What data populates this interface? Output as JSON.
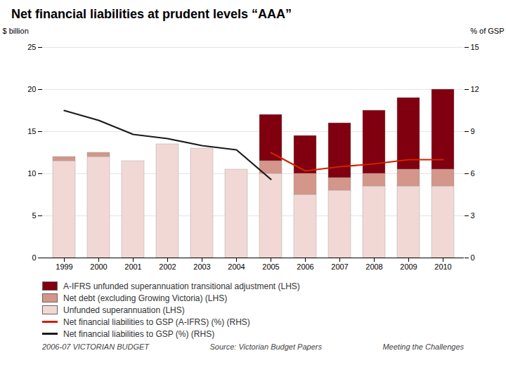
{
  "chart_data": {
    "type": "bar",
    "title": "Net financial liabilities at prudent levels “AAA”",
    "categories": [
      "1999",
      "2000",
      "2001",
      "2002",
      "2003",
      "2004",
      "2005",
      "2006",
      "2007",
      "2008",
      "2009",
      "2010"
    ],
    "stacked": true,
    "grid": true,
    "ylabel": "$ billion",
    "y2label": "% of GSP",
    "ylim": [
      0,
      25
    ],
    "yticks": [
      0,
      5,
      10,
      15,
      20,
      25
    ],
    "y2lim": [
      0,
      15
    ],
    "y2ticks": [
      0,
      3,
      6,
      9,
      12,
      15
    ],
    "series": [
      {
        "name": "Unfunded superannuation (LHS)",
        "type": "bar",
        "color": "#f2d8d4",
        "values": [
          11.5,
          12.0,
          11.5,
          13.5,
          13.0,
          10.5,
          10.0,
          7.5,
          8.0,
          8.5,
          8.5,
          8.5
        ]
      },
      {
        "name": "Net debt (excluding Growing Victoria) (LHS)",
        "type": "bar",
        "color": "#d4968a",
        "values": [
          0.5,
          0.5,
          0.0,
          0.0,
          0.0,
          0.0,
          1.5,
          2.5,
          1.5,
          1.5,
          2.0,
          2.0
        ]
      },
      {
        "name": "A-IFRS unfunded superannuation transitional adjustment (LHS)",
        "type": "bar",
        "color": "#800010",
        "values": [
          0.0,
          0.0,
          0.0,
          0.0,
          0.0,
          0.0,
          5.5,
          4.5,
          6.5,
          7.5,
          8.5,
          9.5
        ]
      },
      {
        "name": "Net financial liabilities to GSP (%) (RHS)",
        "type": "line",
        "axis": "y2",
        "color": "#1a1a1a",
        "values": [
          10.5,
          9.8,
          8.8,
          8.5,
          8.0,
          7.7,
          5.6,
          null,
          null,
          null,
          null,
          null
        ]
      },
      {
        "name": "Net financial liabilities to GSP (A-IFRS) (%) (RHS)",
        "type": "line",
        "axis": "y2",
        "color": "#cc2200",
        "values": [
          null,
          null,
          null,
          null,
          null,
          null,
          7.5,
          6.2,
          6.5,
          6.7,
          7.0,
          7.0
        ]
      }
    ],
    "annotations": [
      "2006-07 VICTORIAN BUDGET",
      "Source: Victorian Budget Papers",
      "Meeting the Challenges"
    ]
  }
}
